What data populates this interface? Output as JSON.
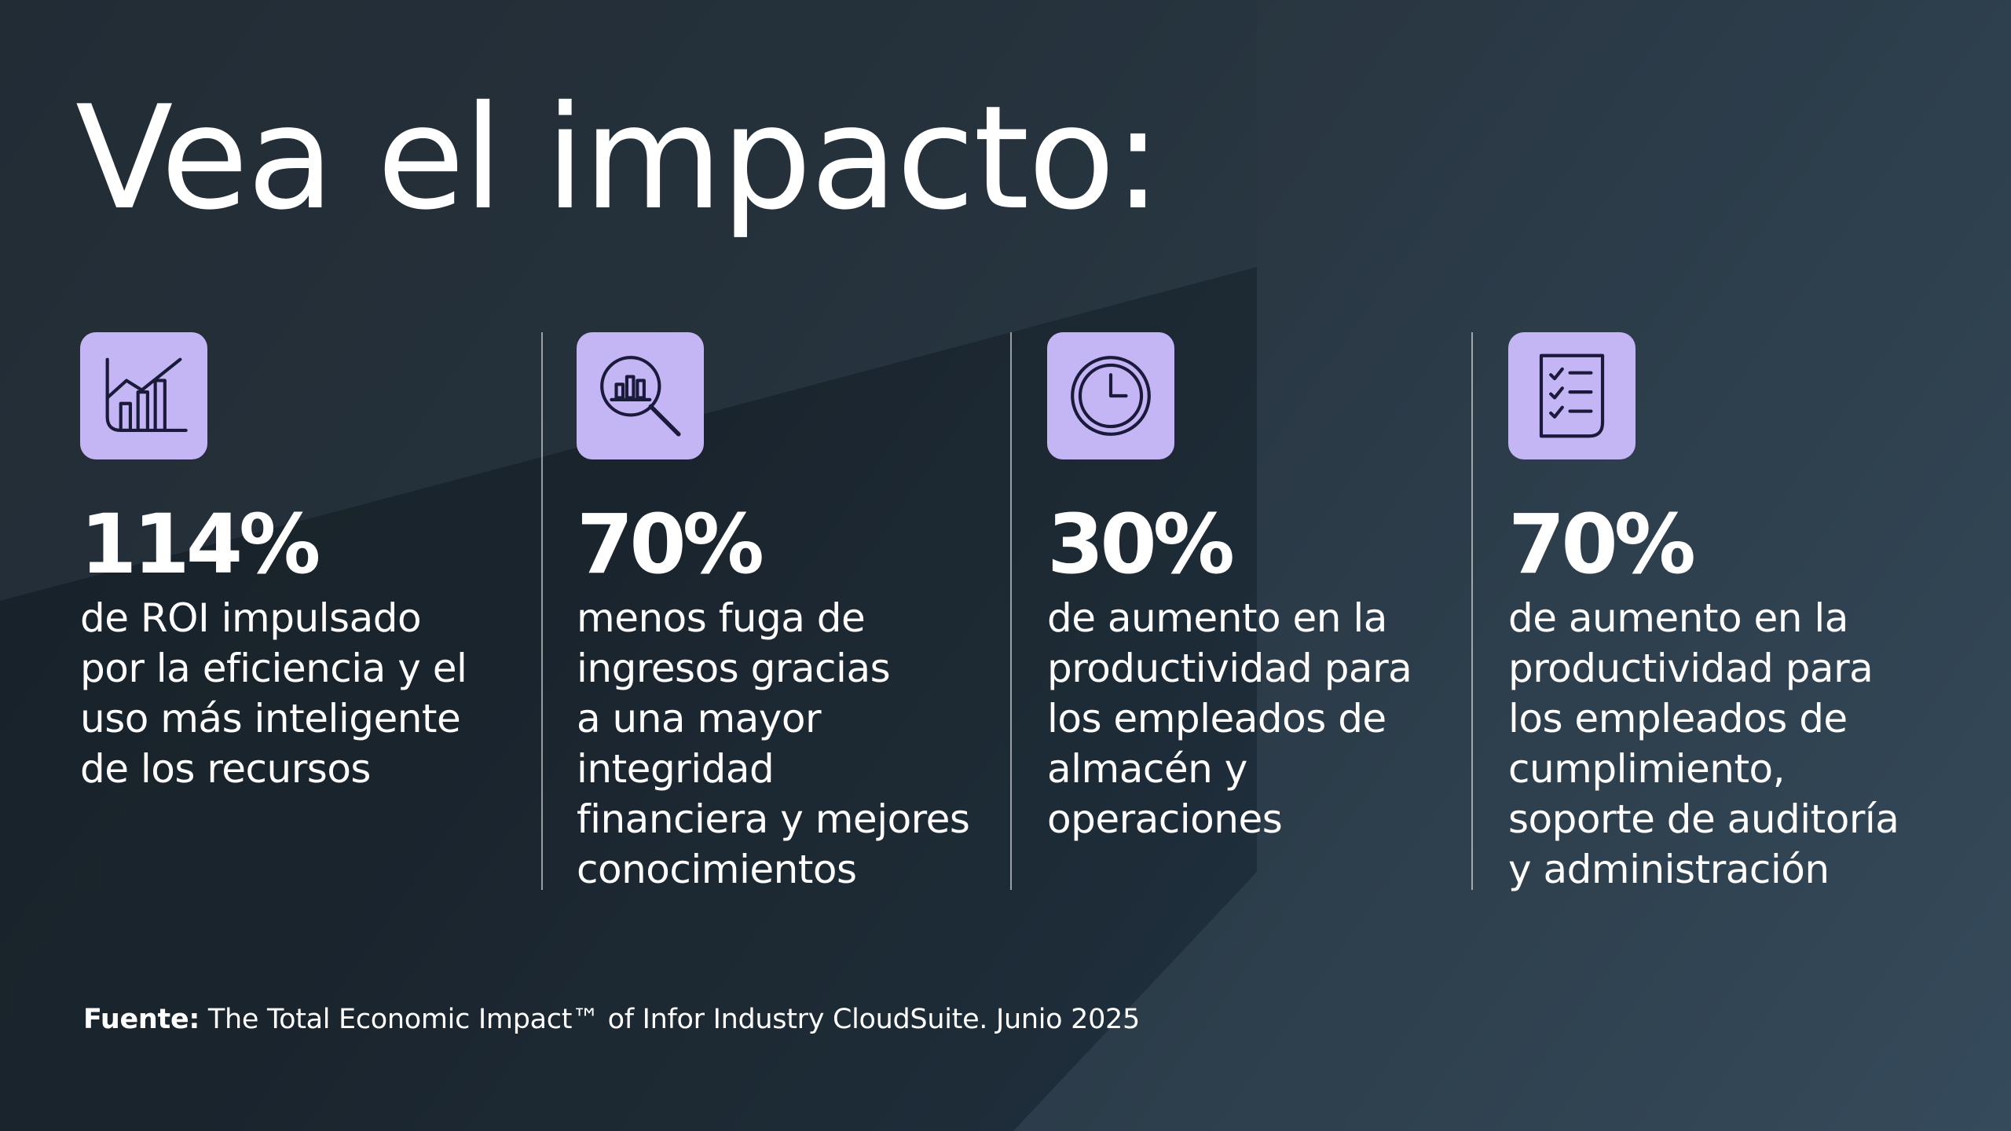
{
  "title": "Vea el impacto:",
  "stats": [
    {
      "icon": "growth-chart-icon",
      "value": "114%",
      "description": "de ROI impulsado\npor la eficiencia y el\nuso más inteligente\nde los recursos"
    },
    {
      "icon": "magnifier-chart-icon",
      "value": "70%",
      "description": "menos fuga de\ningresos gracias\na una mayor\nintegridad\nfinanciera y mejores\nconocimientos"
    },
    {
      "icon": "clock-icon",
      "value": "30%",
      "description": "de aumento en la\nproductividad para\nlos empleados de\nalmacén y\noperaciones"
    },
    {
      "icon": "checklist-icon",
      "value": "70%",
      "description": "de aumento en la\nproductividad para\nlos empleados de\ncumplimiento,\nsoporte de auditoría\ny administración"
    }
  ],
  "source": {
    "label": "Fuente:",
    "text": " The Total Economic Impact™ of Infor Industry CloudSuite. Junio 2025"
  },
  "colors": {
    "icon_background": "#c4b5f5",
    "icon_stroke": "#1a1a3a",
    "background": "#1e2a34",
    "text": "#ffffff"
  }
}
